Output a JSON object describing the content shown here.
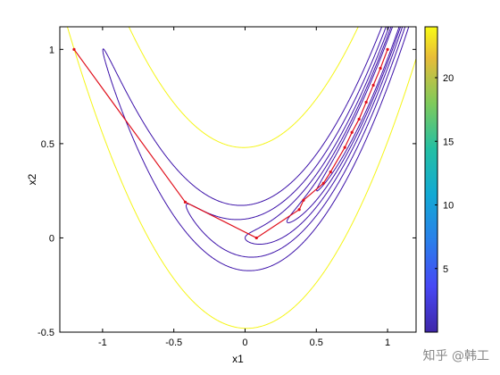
{
  "chart_data": {
    "type": "contour",
    "function": "rosenbrock",
    "xlabel": "x1",
    "ylabel": "x2",
    "xlim": [
      -1.3,
      1.2
    ],
    "ylim": [
      -0.5,
      1.12
    ],
    "xticks": [
      -1,
      -0.5,
      0,
      0.5,
      1
    ],
    "yticks": [
      -0.5,
      0,
      0.5,
      1
    ],
    "contour_levels": [
      0.25,
      0.5,
      1,
      2,
      4,
      24
    ],
    "contour_colors": [
      "#3a0fa8",
      "#3a0fa8",
      "#3a0fa8",
      "#3a0fa8",
      "#3a0fa8",
      "#f5f515"
    ],
    "colorbar": {
      "range": [
        0,
        24
      ],
      "ticks": [
        5,
        10,
        15,
        20
      ],
      "colormap": "parula"
    },
    "optimization_path": {
      "color": "#e0101c",
      "x": [
        -1.2,
        -0.42,
        0.08,
        0.38,
        0.41,
        0.55,
        0.6,
        0.7,
        0.75,
        0.8,
        0.85,
        0.9,
        0.95,
        1.0
      ],
      "y": [
        1.0,
        0.19,
        0.0,
        0.15,
        0.2,
        0.29,
        0.35,
        0.48,
        0.56,
        0.63,
        0.72,
        0.81,
        0.9,
        1.0
      ]
    }
  },
  "watermark": "知乎 @韩工"
}
